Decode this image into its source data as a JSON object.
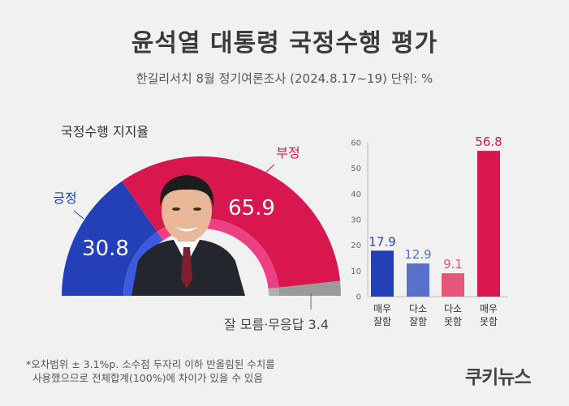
{
  "title": "윤석열 대통령 국정수행 평가",
  "subtitle": "한길리서치 8월 정기여론조사 (2024.8.17~19) 단위: %",
  "panel_label": "국정수행 지지율",
  "footnote": [
    "*오차범위 ± 3.1%p. 소수점 두자리 이하 반올림된 수치를",
    "사용했으므로 전체합계(100%)에 차이가 있을 수 있음"
  ],
  "brand": "쿠키뉴스",
  "chart_data": [
    {
      "type": "pie",
      "subtype": "half-donut",
      "title": "국정수행 지지율",
      "slices": [
        {
          "label": "긍정",
          "value": 30.8,
          "value_label": "30.8",
          "color": "#2440b8"
        },
        {
          "label": "부정",
          "value": 65.9,
          "value_label": "65.9",
          "color": "#d8174f"
        },
        {
          "label": "잘 모름·무응답",
          "value": 3.4,
          "value_label": "3.4",
          "color": "#9a9a9a"
        }
      ]
    },
    {
      "type": "bar",
      "categories": [
        [
          "매우",
          "잘함"
        ],
        [
          "다소",
          "잘함"
        ],
        [
          "다소",
          "못함"
        ],
        [
          "매우",
          "못함"
        ]
      ],
      "values": [
        17.9,
        12.9,
        9.1,
        56.8
      ],
      "value_labels": [
        "17.9",
        "12.9",
        "9.1",
        "56.8"
      ],
      "colors": [
        "#2440b8",
        "#5870cc",
        "#e6557a",
        "#d8174f"
      ],
      "yticks": [
        "0",
        "10",
        "20",
        "30",
        "40",
        "50",
        "60"
      ],
      "ylim": [
        0,
        60
      ],
      "grid": false
    }
  ]
}
